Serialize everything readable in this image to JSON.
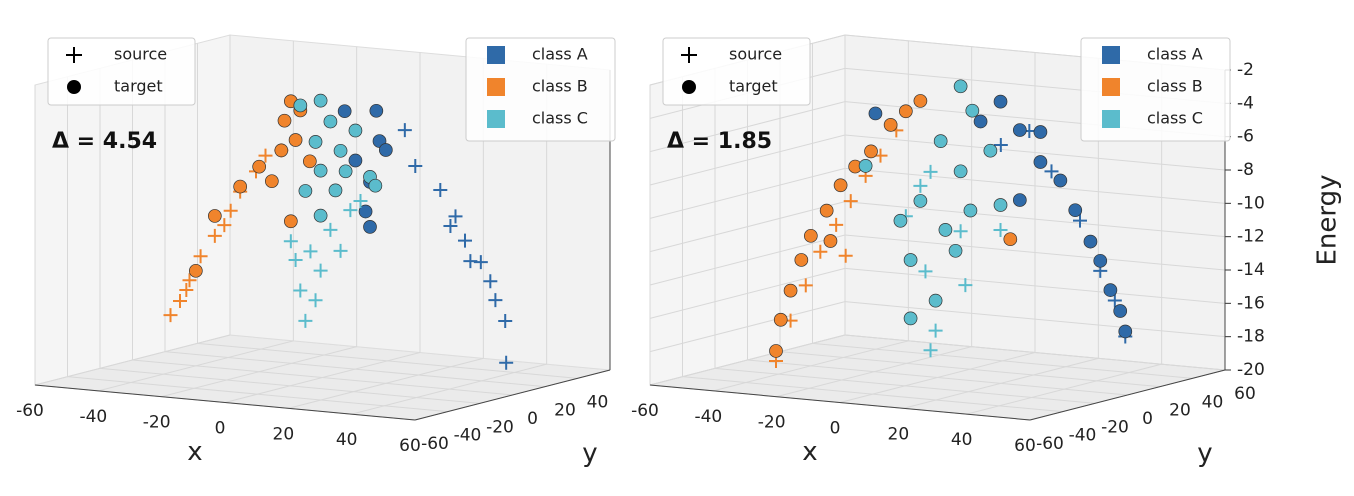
{
  "chart_data": [
    {
      "type": "scatter3d",
      "annotation": "Δ = 4.54",
      "xlabel": "x",
      "ylabel": "y",
      "xlim": [
        -60,
        60
      ],
      "ylim": [
        -60,
        60
      ],
      "zlim": [
        -20,
        -2
      ],
      "xticks": [
        -60,
        -40,
        -20,
        0,
        20,
        40,
        60
      ],
      "yticks": [
        -60,
        -40,
        -20,
        0,
        20,
        40
      ],
      "marker_legend": [
        "source",
        "target"
      ],
      "classes": [
        {
          "name": "class A",
          "color": "#2f6aa8",
          "source": {
            "x": [
              26,
              29.3,
              37.2,
              40.4,
              42,
              45,
              46.7,
              50,
              53,
              54.6,
              57.7,
              58
            ],
            "y": [
              0,
              0,
              0,
              0,
              0,
              0,
              0,
              0,
              0,
              0,
              0,
              0
            ],
            "z": [
              -4.7,
              -6.8,
              -8.1,
              -10.2,
              -9.6,
              -11,
              -12.2,
              -12.2,
              -13.3,
              -14.4,
              -15.6,
              -18.1
            ]
          },
          "target": {
            "x": [
              7,
              17,
              18,
              15,
              13.6,
              10.4,
              20,
              15
            ],
            "y": [
              0,
              0,
              0,
              0,
              0,
              0,
              0,
              0
            ],
            "z": [
              -3.9,
              -3.7,
              -5.5,
              -8,
              -9.8,
              -6.8,
              -6,
              -10.7
            ]
          }
        },
        {
          "name": "class B",
          "color": "#f0842c",
          "source": {
            "x": [
              -48,
              -45,
              -43,
              -42,
              -38.5,
              -34,
              -31,
              -29,
              -26,
              -21,
              -18,
              -13
            ],
            "y": [
              0,
              0,
              0,
              0,
              0,
              0,
              0,
              0,
              0,
              0,
              0,
              0
            ],
            "z": [
              -17.1,
              -16.2,
              -15.5,
              -14.9,
              -13.4,
              -12.1,
              -11.4,
              -10.5,
              -9.3,
              -8,
              -7,
              -6.6
            ]
          },
          "target": {
            "x": [
              -40,
              -34,
              -26,
              -20,
              -16,
              -13,
              -12,
              -10,
              -7,
              -8.5,
              -4,
              -10
            ],
            "y": [
              0,
              0,
              0,
              0,
              0,
              0,
              0,
              0,
              0,
              0,
              0,
              0
            ],
            "z": [
              -14.3,
              -10.9,
              -9,
              -7.7,
              -8.5,
              -6.6,
              -4.8,
              -3.6,
              -4.1,
              -5.9,
              -7.1,
              -10.8
            ]
          }
        },
        {
          "name": "class C",
          "color": "#5bbccc",
          "source": {
            "x": [
              -10,
              -3.8,
              2.5,
              8.8,
              -7,
              -5.4,
              -0.6,
              5.7,
              -8.5,
              12,
              -2.2
            ],
            "y": [
              0,
              0,
              0,
              0,
              0,
              0,
              0,
              0,
              0,
              0,
              0
            ],
            "z": [
              -12,
              -12.5,
              -11.1,
              -9.8,
              -14.9,
              -16.7,
              -13.6,
              -12.3,
              -13.1,
              -9.2,
              -15.4
            ]
          },
          "target": {
            "x": [
              -7,
              -0.6,
              2.5,
              -2.2,
              5.7,
              10.4,
              -0.6,
              -5.4,
              4.1,
              15,
              -0.6,
              16.7,
              7.3
            ],
            "y": [
              0,
              0,
              0,
              0,
              0,
              0,
              0,
              0,
              0,
              0,
              0,
              0,
              0
            ],
            "z": [
              -3.8,
              -3.4,
              -4.6,
              -5.9,
              -6.3,
              -5,
              -7.6,
              -8.9,
              -8.7,
              -7.7,
              -10.3,
              -8.2,
              -7.5
            ]
          }
        }
      ]
    },
    {
      "type": "scatter3d",
      "annotation": "Δ = 1.85",
      "xlabel": "x",
      "ylabel": "y",
      "zlabel": "Energy",
      "xlim": [
        -60,
        60
      ],
      "ylim": [
        -60,
        60
      ],
      "zlim": [
        -20,
        -2
      ],
      "xticks": [
        -60,
        -40,
        -20,
        0,
        20,
        40,
        60
      ],
      "yticks": [
        -60,
        -40,
        -20,
        0,
        20,
        40,
        60
      ],
      "zticks": [
        -20,
        -18,
        -16,
        -14,
        -12,
        -10,
        -8,
        -6,
        -4,
        -2
      ],
      "marker_legend": [
        "source",
        "target"
      ],
      "classes": [
        {
          "name": "class A",
          "color": "#2f6aa8",
          "source": {
            "x": [
              29,
              36,
              45,
              51.4,
              56,
              59.3,
              20
            ],
            "y": [
              0,
              0,
              0,
              0,
              0,
              0,
              0
            ],
            "z": [
              -4.7,
              -7,
              -9.8,
              -12.7,
              -14.4,
              -16.5,
              -5.7
            ]
          },
          "target": {
            "x": [
              19.9,
              26,
              32.5,
              38.8,
              43.5,
              48.3,
              51.4,
              54.6,
              57.7,
              59.3,
              26,
              13.6,
              -19.6,
              32.5
            ],
            "y": [
              0,
              0,
              0,
              0,
              0,
              0,
              0,
              0,
              0,
              0,
              0,
              0,
              0,
              0
            ],
            "z": [
              -3.1,
              -4.7,
              -6.5,
              -7.5,
              -9.2,
              -11,
              -12.1,
              -13.8,
              -15,
              -16.2,
              -8.9,
              -4.4,
              -4.5,
              -4.7
            ]
          }
        },
        {
          "name": "class B",
          "color": "#f0842c",
          "source": {
            "x": [
              -51,
              -46.4,
              -41.6,
              -37,
              -32,
              -27.4,
              -22.7,
              -18,
              -13,
              -29
            ],
            "y": [
              0,
              0,
              0,
              0,
              0,
              0,
              0,
              0,
              0,
              0
            ],
            "z": [
              -19.9,
              -17.4,
              -15.2,
              -13.1,
              -11.4,
              -9.9,
              -8.3,
              -7,
              -5.4,
              -13.2
            ]
          },
          "target": {
            "x": [
              -51,
              -49.5,
              -46.4,
              -43,
              -40,
              -35,
              -30.6,
              -26,
              -21,
              -14.8,
              -10,
              -5.4,
              -33.8,
              23
            ],
            "y": [
              0,
              0,
              0,
              0,
              0,
              0,
              0,
              0,
              0,
              0,
              0,
              0,
              0,
              0
            ],
            "z": [
              -19.3,
              -17.4,
              -15.6,
              -13.7,
              -12.2,
              -10.6,
              -9,
              -7.8,
              -6.8,
              -5.1,
              -4.2,
              -3.5,
              -12.4,
              -11.3
            ]
          }
        },
        {
          "name": "class C",
          "color": "#5bbccc",
          "source": {
            "x": [
              -2.2,
              -0.6,
              -3.8,
              8.8,
              -2.2,
              -10,
              7.3,
              -5.4,
              19.9
            ],
            "y": [
              0,
              0,
              0,
              0,
              0,
              0,
              0,
              0,
              0
            ],
            "z": [
              -18.4,
              -17.2,
              -13.7,
              -14.3,
              -7.7,
              -10.5,
              -11.1,
              -8.6,
              -10.8
            ]
          },
          "target": {
            "x": [
              7.3,
              11,
              1,
              7.3,
              16.7,
              -5.4,
              -11.7,
              2.5,
              10.4,
              -8.5,
              -0.6,
              -8.5,
              5.7,
              19.9,
              -22.7
            ],
            "y": [
              0,
              0,
              0,
              0,
              0,
              0,
              0,
              0,
              0,
              0,
              0,
              0,
              0,
              0,
              0
            ],
            "z": [
              -2.4,
              -3.8,
              -5.8,
              -7.5,
              -6.1,
              -9.5,
              -10.8,
              -11.1,
              -9.8,
              -13.1,
              -15.4,
              -16.6,
              -12.3,
              -9.3,
              -7.7
            ]
          }
        }
      ]
    }
  ]
}
